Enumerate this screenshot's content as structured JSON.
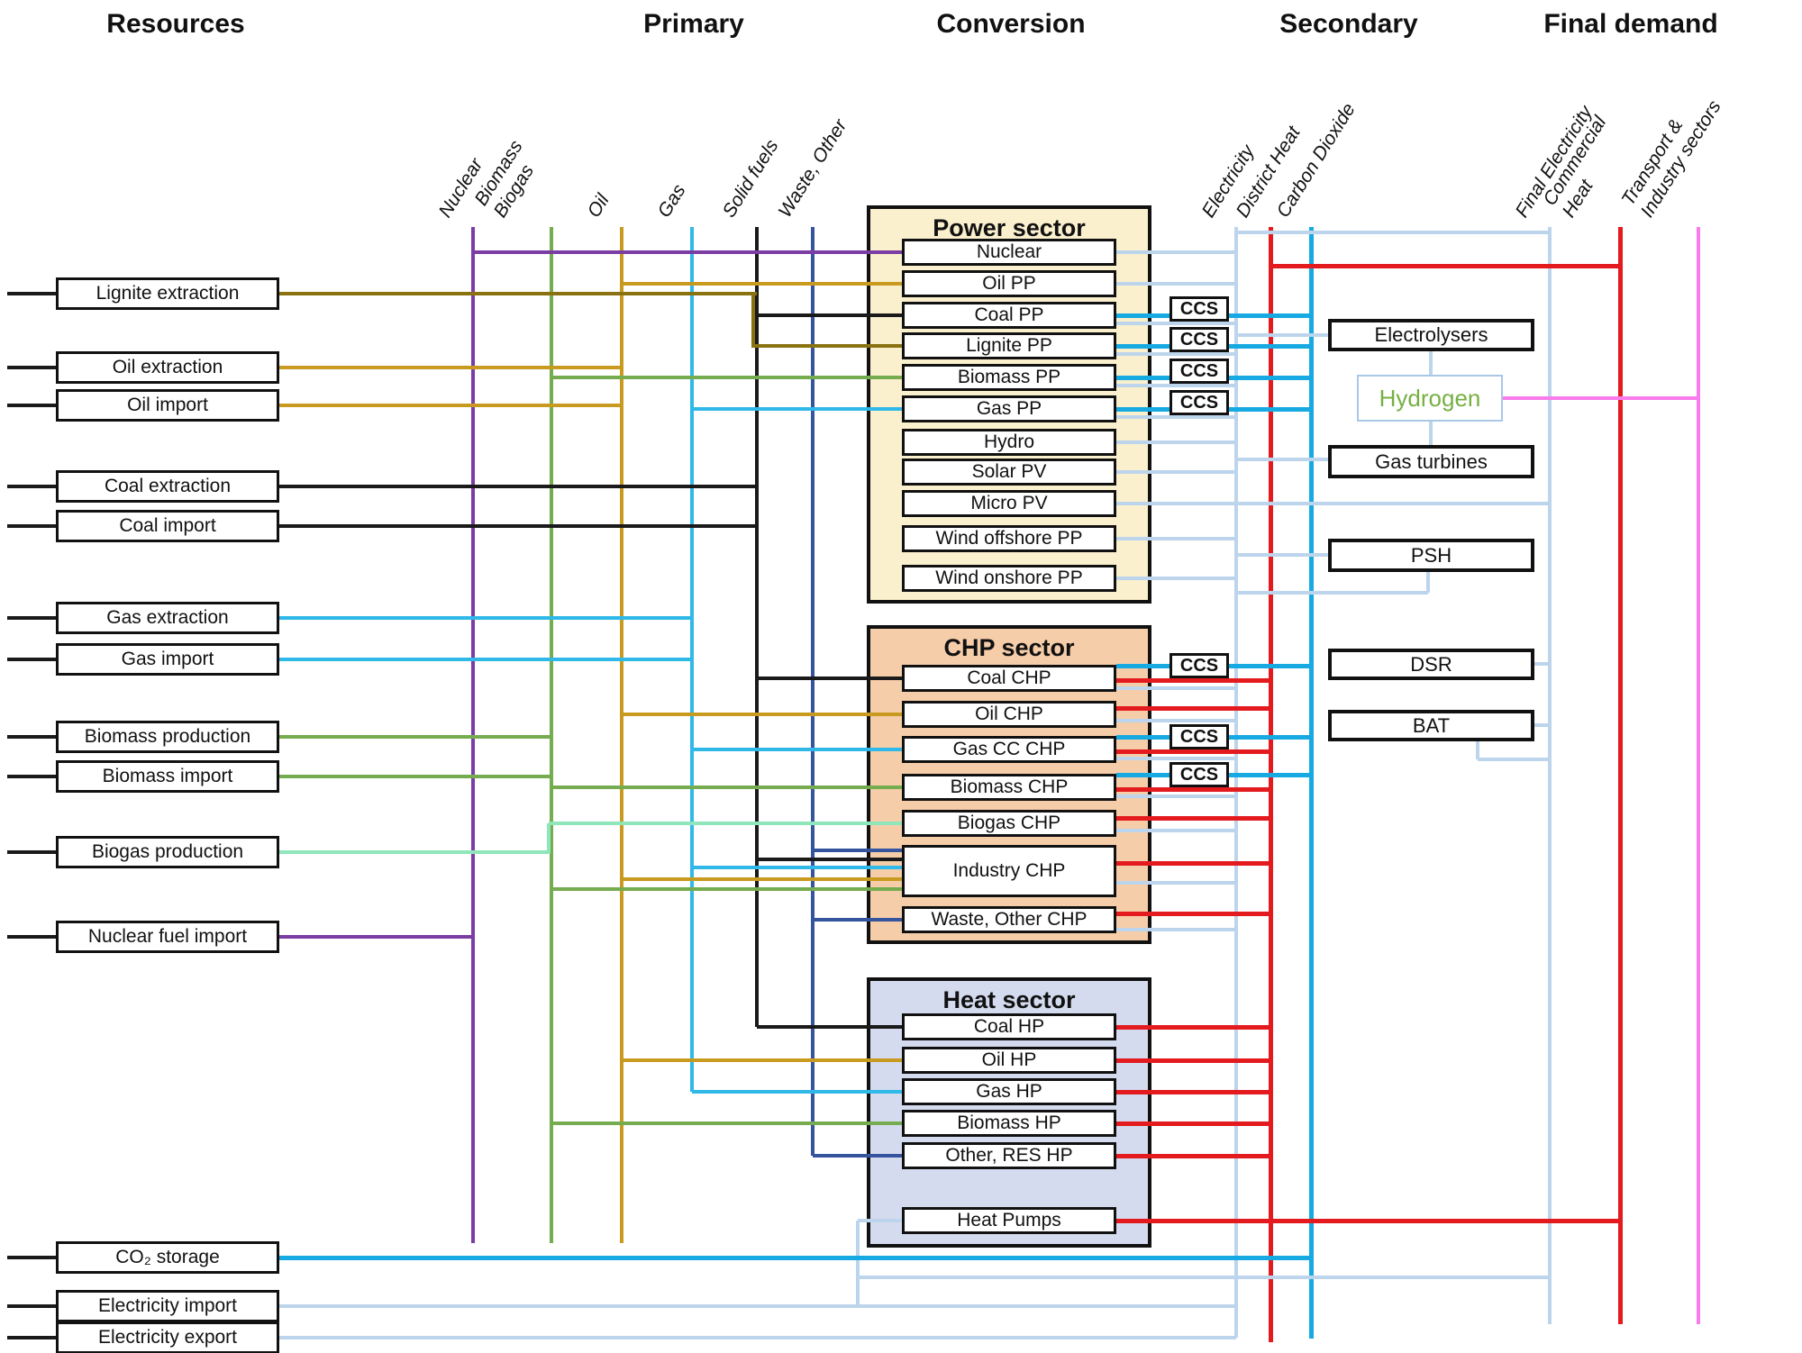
{
  "headers": {
    "resources": "Resources",
    "primary": "Primary",
    "conversion": "Conversion",
    "secondary": "Secondary",
    "final_demand": "Final demand"
  },
  "primary_carriers": [
    "Nuclear",
    "Biomass\nBiogas",
    "Oil",
    "Gas",
    "Solid fuels",
    "Waste, Other"
  ],
  "secondary_carriers": [
    "Electricity",
    "District Heat",
    "Carbon Dioxide"
  ],
  "final_carriers": [
    "Final Electricity",
    "Commercial\nHeat",
    "Transport &\nIndustry sectors"
  ],
  "resources": [
    "Lignite extraction",
    "Oil extraction",
    "Oil import",
    "Coal extraction",
    "Coal import",
    "Gas extraction",
    "Gas import",
    "Biomass production",
    "Biomass import",
    "Biogas production",
    "Nuclear fuel import",
    "CO₂ storage",
    "Electricity import",
    "Electricity export"
  ],
  "power_sector": {
    "title": "Power sector",
    "items": [
      "Nuclear",
      "Oil PP",
      "Coal PP",
      "Lignite PP",
      "Biomass PP",
      "Gas PP",
      "Hydro",
      "Solar PV",
      "Micro PV",
      "Wind offshore PP",
      "Wind onshore PP"
    ]
  },
  "chp_sector": {
    "title": "CHP sector",
    "items": [
      "Coal CHP",
      "Oil CHP",
      "Gas CC CHP",
      "Biomass CHP",
      "Biogas CHP",
      "Industry CHP",
      "Waste, Other CHP"
    ]
  },
  "heat_sector": {
    "title": "Heat sector",
    "items": [
      "Coal HP",
      "Oil HP",
      "Gas HP",
      "Biomass HP",
      "Other, RES HP",
      "Heat Pumps"
    ]
  },
  "secondary_units": [
    "Electrolysers",
    "Hydrogen",
    "Gas turbines",
    "PSH",
    "DSR",
    "BAT"
  ],
  "ccs_label": "CCS",
  "colors": {
    "purple": "#7B3DA3",
    "green": "#76AC50",
    "mint": "#8EE6BA",
    "gold": "#C89B20",
    "olive": "#8A7210",
    "black": "#1A1A1A",
    "navy": "#34549E",
    "gas": "#2FB8E8",
    "co2": "#17A9E1",
    "pale": "#BCD5EC",
    "red": "#E41B1E",
    "pink": "#F97CEC",
    "hydrogen_text": "#76B043",
    "hydrogen_border": "#A8C8E6",
    "power_bg": "#FAF0CD",
    "chp_bg": "#F6CDA9",
    "heat_bg": "#D5DBEF"
  }
}
